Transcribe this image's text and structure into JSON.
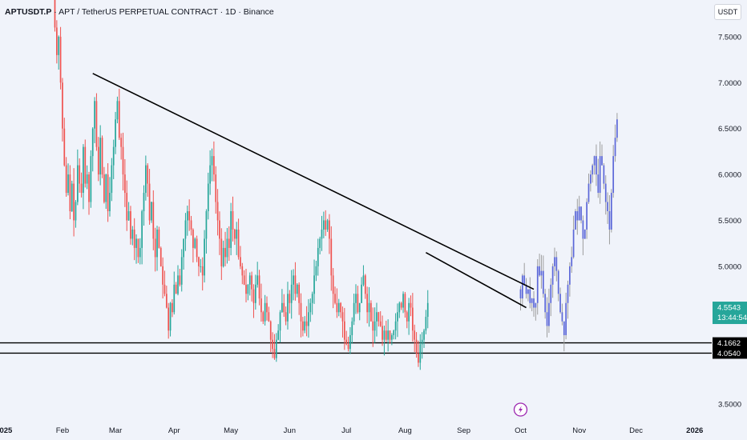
{
  "header": {
    "symbol": "APTUSDT.P",
    "separator": "·",
    "description": "APT / TetherUS PERPETUAL CONTRACT · 1D · Binance"
  },
  "currency_button": "USDT",
  "colors": {
    "background": "#f0f3fa",
    "up": "#26a69a",
    "down": "#ef5350",
    "projection": "#5b67d8",
    "projection_wick": "#9e9e9e",
    "trendline": "#000000",
    "price_badge": "#26a69a",
    "level_badge": "#000000",
    "event_icon": "#9c27b0"
  },
  "event_icon": "lightning-icon",
  "chart_data": {
    "type": "candlestick",
    "x_type": "date",
    "x_range": [
      "2024-12-30",
      "2026-01-10"
    ],
    "y_range": [
      3.3,
      7.9
    ],
    "y_ticks": [
      {
        "value": 7.5,
        "label": "7.5000"
      },
      {
        "value": 7.0,
        "label": "7.0000"
      },
      {
        "value": 6.5,
        "label": "6.5000"
      },
      {
        "value": 6.0,
        "label": "6.0000"
      },
      {
        "value": 5.5,
        "label": "5.5000"
      },
      {
        "value": 5.0,
        "label": "5.0000"
      },
      {
        "value": 3.5,
        "label": "3.5000"
      }
    ],
    "x_ticks": [
      {
        "date": "2025-01-01",
        "label": "2025",
        "year": true
      },
      {
        "date": "2025-02-01",
        "label": "Feb",
        "year": false
      },
      {
        "date": "2025-03-01",
        "label": "Mar",
        "year": false
      },
      {
        "date": "2025-04-01",
        "label": "Apr",
        "year": false
      },
      {
        "date": "2025-05-01",
        "label": "May",
        "year": false
      },
      {
        "date": "2025-06-01",
        "label": "Jun",
        "year": false
      },
      {
        "date": "2025-07-01",
        "label": "Jul",
        "year": false
      },
      {
        "date": "2025-08-01",
        "label": "Aug",
        "year": false
      },
      {
        "date": "2025-09-01",
        "label": "Sep",
        "year": false
      },
      {
        "date": "2025-10-01",
        "label": "Oct",
        "year": false
      },
      {
        "date": "2025-11-01",
        "label": "Nov",
        "year": false
      },
      {
        "date": "2025-12-01",
        "label": "Dec",
        "year": false
      },
      {
        "date": "2026-01-01",
        "label": "2026",
        "year": true
      }
    ],
    "price_series": {
      "start_date": "2025-01-27",
      "closes": [
        8.1,
        7.6,
        7.3,
        7.5,
        7.0,
        6.5,
        6.1,
        5.8,
        6.0,
        5.6,
        5.9,
        5.5,
        5.7,
        6.1,
        5.9,
        5.8,
        6.3,
        5.9,
        6.0,
        5.7,
        6.2,
        6.5,
        6.8,
        6.3,
        6.0,
        6.4,
        6.0,
        5.7,
        6.0,
        5.6,
        5.8,
        6.1,
        6.3,
        6.6,
        6.8,
        6.4,
        6.3,
        6.0,
        5.8,
        5.5,
        5.6,
        5.3,
        5.4,
        5.2,
        5.3,
        5.1,
        5.2,
        5.6,
        5.8,
        6.1,
        5.9,
        5.5,
        5.7,
        5.3,
        5.1,
        5.4,
        5.2,
        5.0,
        4.8,
        4.7,
        4.55,
        4.3,
        4.6,
        4.5,
        4.8,
        4.7,
        4.9,
        4.8,
        5.1,
        5.3,
        5.5,
        5.6,
        5.5,
        5.4,
        5.2,
        5.3,
        5.1,
        5.0,
        5.0,
        4.9,
        5.3,
        5.6,
        5.9,
        6.1,
        6.2,
        6.0,
        5.7,
        5.5,
        5.3,
        5.0,
        5.2,
        5.1,
        5.3,
        5.2,
        5.6,
        5.4,
        5.3,
        5.4,
        5.1,
        5.0,
        4.9,
        4.8,
        4.7,
        4.8,
        4.9,
        4.75,
        4.6,
        4.8,
        4.9,
        4.65,
        4.5,
        4.4,
        4.6,
        4.5,
        4.4,
        4.2,
        4.1,
        4.0,
        4.2,
        4.3,
        4.5,
        4.6,
        4.5,
        4.4,
        4.7,
        4.6,
        4.8,
        4.9,
        4.7,
        4.8,
        4.6,
        4.4,
        4.3,
        4.4,
        4.35,
        4.5,
        4.6,
        4.7,
        4.9,
        5.0,
        5.2,
        5.3,
        5.4,
        5.5,
        5.4,
        5.5,
        5.3,
        4.9,
        4.7,
        4.6,
        4.5,
        4.6,
        4.5,
        4.4,
        4.2,
        4.15,
        4.1,
        4.25,
        4.4,
        4.6,
        4.7,
        4.5,
        4.6,
        4.8,
        4.9,
        4.7,
        4.5,
        4.6,
        4.4,
        4.3,
        4.4,
        4.5,
        4.4,
        4.35,
        4.2,
        4.3,
        4.2,
        4.3,
        4.2,
        4.25,
        4.3,
        4.4,
        4.5,
        4.6,
        4.55,
        4.7,
        4.5,
        4.4,
        4.6,
        4.55,
        4.3,
        4.2,
        4.05,
        3.95,
        4.15,
        4.2,
        4.3,
        4.45,
        4.6
      ]
    },
    "projection_series": {
      "start_date": "2025-10-01",
      "closes": [
        4.65,
        4.9,
        4.8,
        4.7,
        4.75,
        4.6,
        4.65,
        4.55,
        4.6,
        5.0,
        4.9,
        4.95,
        4.7,
        4.5,
        4.35,
        4.6,
        4.8,
        5.0,
        5.1,
        4.95,
        4.7,
        4.5,
        4.4,
        4.25,
        4.6,
        4.8,
        5.0,
        5.1,
        5.4,
        5.6,
        5.5,
        5.65,
        5.5,
        5.3,
        5.4,
        5.7,
        5.9,
        6.0,
        6.1,
        6.2,
        6.0,
        5.8,
        6.2,
        6.1,
        5.9,
        5.7,
        5.6,
        5.4,
        5.8,
        6.2,
        6.4,
        6.6
      ]
    },
    "horizontal_levels": [
      {
        "value": 4.1662,
        "label": "4.1662"
      },
      {
        "value": 4.054,
        "label": "4.0540"
      }
    ],
    "trendlines": [
      {
        "from": {
          "date": "2025-02-17",
          "price": 7.1
        },
        "to": {
          "date": "2025-10-08",
          "price": 4.75
        }
      },
      {
        "from": {
          "date": "2025-08-12",
          "price": 5.15
        },
        "to": {
          "date": "2025-10-04",
          "price": 4.55
        }
      }
    ],
    "last_price": {
      "value": 4.5543,
      "label": "4.5543",
      "countdown": "13:44:54"
    },
    "event_marker": {
      "date": "2025-10-01"
    }
  }
}
